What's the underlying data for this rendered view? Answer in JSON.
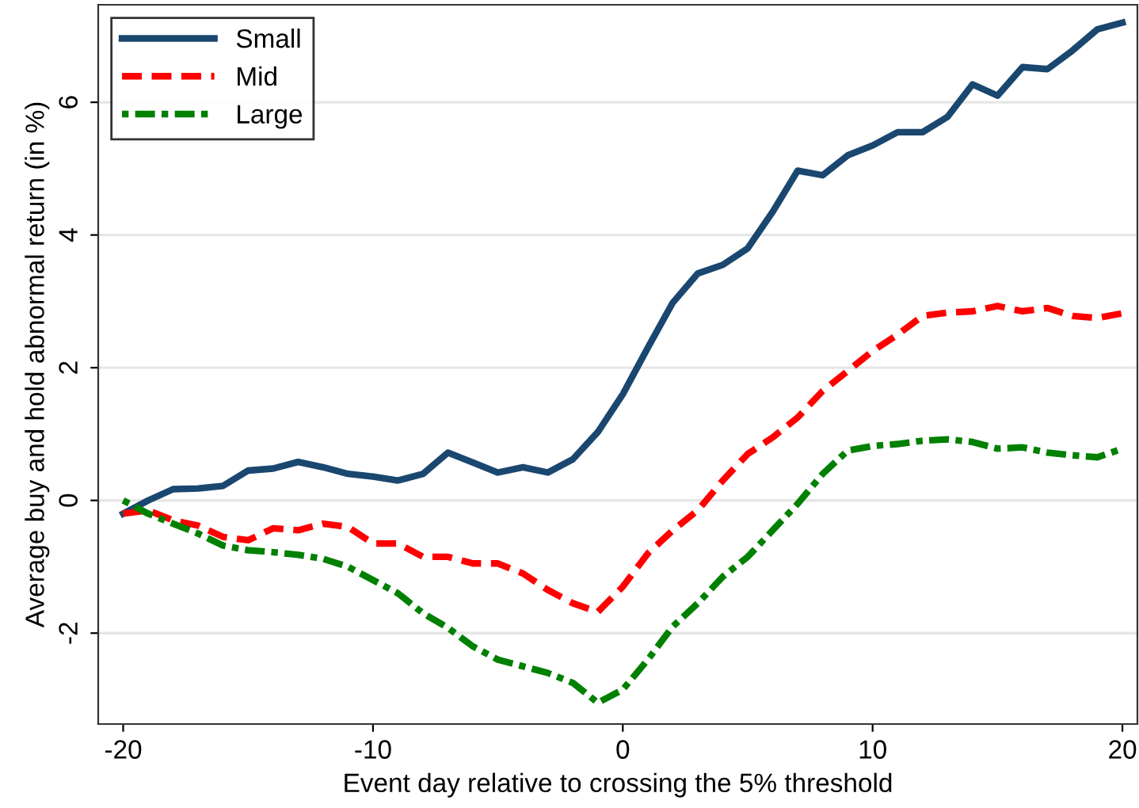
{
  "chart_data": {
    "type": "line",
    "xlabel": "Event day relative to crossing the 5% threshold",
    "ylabel": "Average buy and hold abnormal return (in %)",
    "x": [
      -20,
      -19,
      -18,
      -17,
      -16,
      -15,
      -14,
      -13,
      -12,
      -11,
      -10,
      -9,
      -8,
      -7,
      -6,
      -5,
      -4,
      -3,
      -2,
      -1,
      0,
      1,
      2,
      3,
      4,
      5,
      6,
      7,
      8,
      9,
      10,
      11,
      12,
      13,
      14,
      15,
      16,
      17,
      18,
      19,
      20
    ],
    "series": [
      {
        "name": "Small",
        "color": "#1a476f",
        "line_style": "solid",
        "values": [
          -0.2,
          0.0,
          0.17,
          0.18,
          0.22,
          0.45,
          0.48,
          0.58,
          0.5,
          0.4,
          0.36,
          0.3,
          0.4,
          0.72,
          0.57,
          0.42,
          0.5,
          0.42,
          0.62,
          1.03,
          1.6,
          2.3,
          2.98,
          3.42,
          3.55,
          3.8,
          4.35,
          4.97,
          4.9,
          5.2,
          5.35,
          5.55,
          5.55,
          5.78,
          6.27,
          6.1,
          6.53,
          6.5,
          6.78,
          7.1,
          7.2
        ]
      },
      {
        "name": "Mid",
        "color": "#ff0000",
        "line_style": "dashed",
        "values": [
          -0.2,
          -0.15,
          -0.3,
          -0.38,
          -0.55,
          -0.6,
          -0.42,
          -0.45,
          -0.35,
          -0.4,
          -0.65,
          -0.65,
          -0.85,
          -0.85,
          -0.95,
          -0.95,
          -1.1,
          -1.35,
          -1.55,
          -1.68,
          -1.3,
          -0.8,
          -0.45,
          -0.15,
          0.3,
          0.7,
          0.95,
          1.25,
          1.65,
          1.95,
          2.25,
          2.5,
          2.78,
          2.83,
          2.85,
          2.93,
          2.85,
          2.9,
          2.78,
          2.75,
          2.82
        ]
      },
      {
        "name": "Large",
        "color": "#008000",
        "line_style": "dotted",
        "values": [
          0.0,
          -0.2,
          -0.35,
          -0.5,
          -0.68,
          -0.75,
          -0.78,
          -0.82,
          -0.88,
          -1.0,
          -1.2,
          -1.4,
          -1.7,
          -1.92,
          -2.2,
          -2.4,
          -2.5,
          -2.6,
          -2.75,
          -3.05,
          -2.85,
          -2.4,
          -1.9,
          -1.55,
          -1.15,
          -0.85,
          -0.45,
          -0.05,
          0.4,
          0.75,
          0.82,
          0.85,
          0.9,
          0.92,
          0.88,
          0.78,
          0.8,
          0.72,
          0.68,
          0.65,
          0.78
        ]
      }
    ],
    "xlim": [
      -21,
      20.6
    ],
    "ylim": [
      -3.37,
      7.47
    ],
    "xticks": [
      -20,
      -10,
      0,
      10,
      20
    ],
    "yticks": [
      {
        "value": -2,
        "label": "-2"
      },
      0,
      2,
      4,
      6
    ],
    "grid": "y",
    "legend": "top left",
    "marker": "none"
  }
}
